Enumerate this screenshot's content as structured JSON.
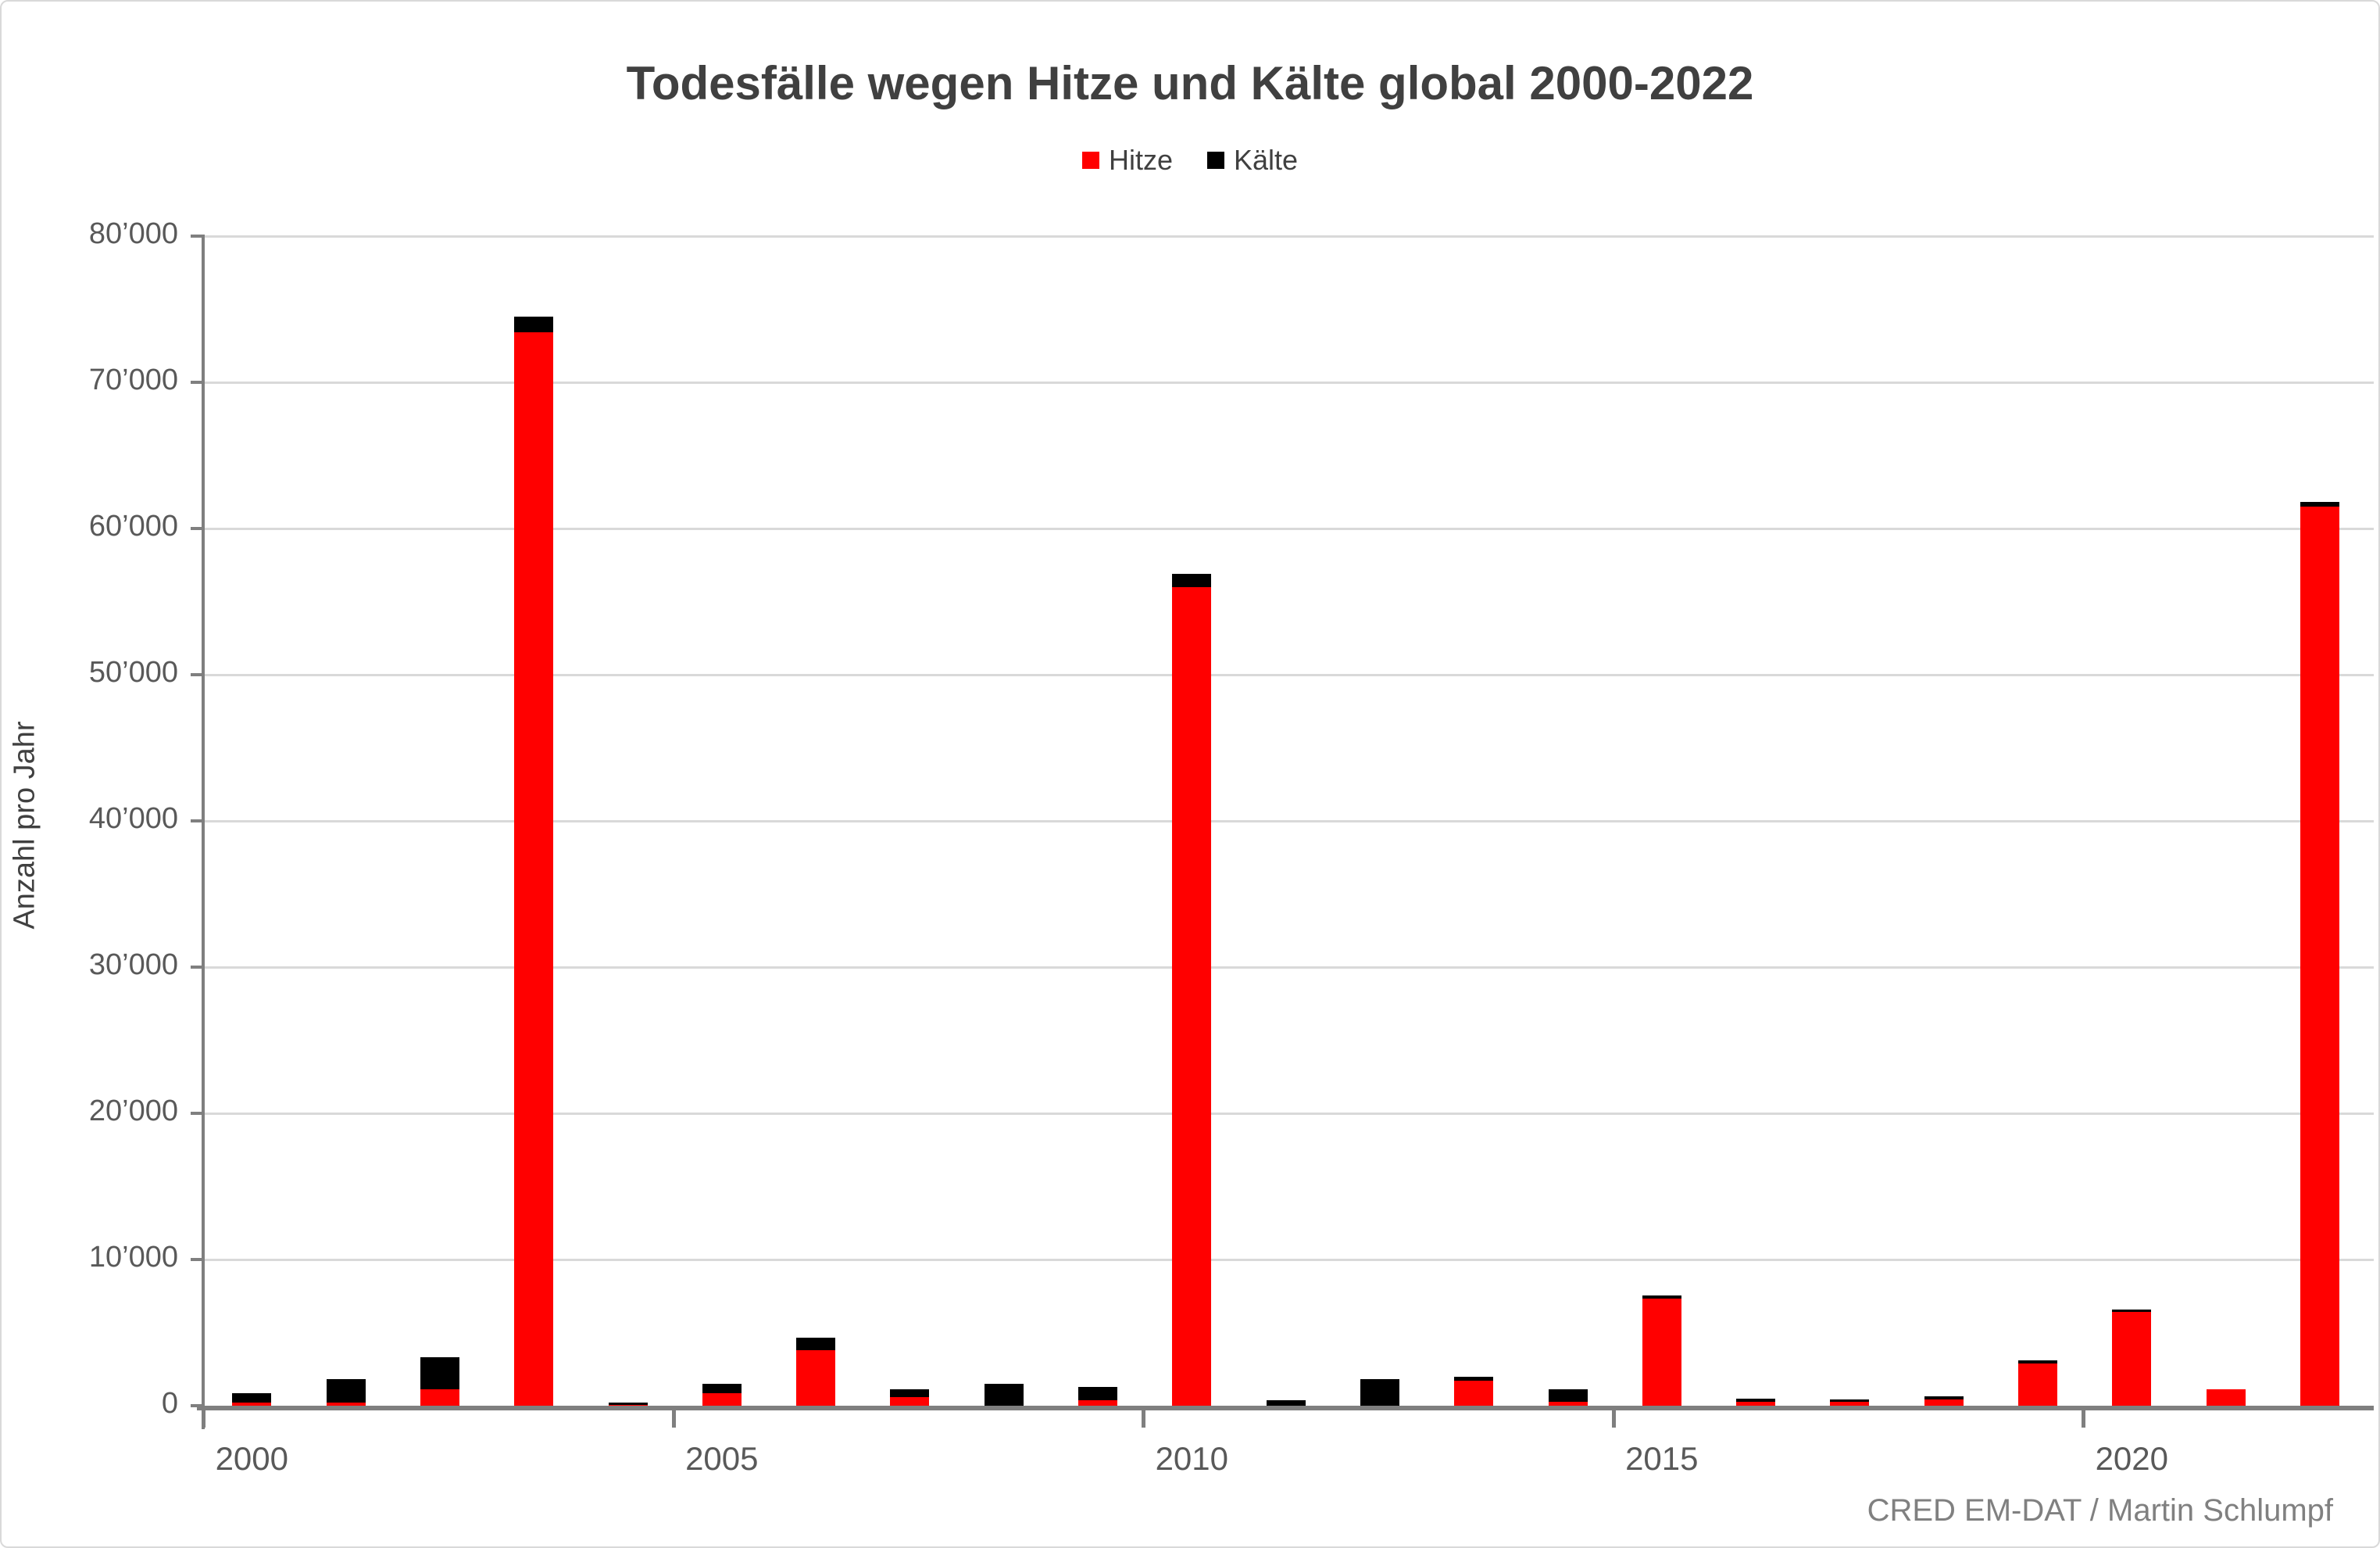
{
  "title": "Todesfälle wegen Hitze und Kälte global 2000-2022",
  "legend": {
    "items": [
      {
        "label": "Hitze",
        "color": "#ff0000"
      },
      {
        "label": "Kälte",
        "color": "#000000"
      }
    ]
  },
  "y_axis": {
    "title": "Anzahl pro Jahr",
    "tick_labels": [
      "0",
      "10’000",
      "20’000",
      "30’000",
      "40’000",
      "50’000",
      "60’000",
      "70’000",
      "80’000"
    ],
    "min": 0,
    "max": 80000,
    "step": 10000
  },
  "x_axis": {
    "tick_labels": [
      "2000",
      "2005",
      "2010",
      "2015",
      "2020"
    ],
    "label_category_indexes": [
      0,
      5,
      10,
      15,
      20
    ]
  },
  "source": "CRED EM-DAT / Martin Schlumpf",
  "chart_data": {
    "type": "bar",
    "stacked": true,
    "title": "Todesfälle wegen Hitze und Kälte global 2000-2022",
    "xlabel": "",
    "ylabel": "Anzahl pro Jahr",
    "ylim": [
      0,
      80000
    ],
    "grid": "horizontal",
    "legend_position": "top-center",
    "categories": [
      2000,
      2001,
      2002,
      2003,
      2004,
      2005,
      2006,
      2007,
      2008,
      2009,
      2010,
      2011,
      2012,
      2013,
      2014,
      2015,
      2016,
      2017,
      2018,
      2019,
      2020,
      2021,
      2022
    ],
    "series": [
      {
        "name": "Hitze",
        "color": "#ff0000",
        "values": [
          200,
          200,
          1100,
          73400,
          50,
          850,
          3800,
          600,
          0,
          400,
          56000,
          0,
          0,
          1700,
          250,
          7300,
          250,
          250,
          450,
          2900,
          6400,
          1100,
          61500
        ]
      },
      {
        "name": "Kälte",
        "color": "#000000",
        "values": [
          650,
          1600,
          2200,
          1100,
          150,
          650,
          850,
          500,
          1500,
          900,
          900,
          400,
          1800,
          300,
          850,
          250,
          250,
          200,
          200,
          200,
          200,
          0,
          300
        ]
      }
    ]
  }
}
